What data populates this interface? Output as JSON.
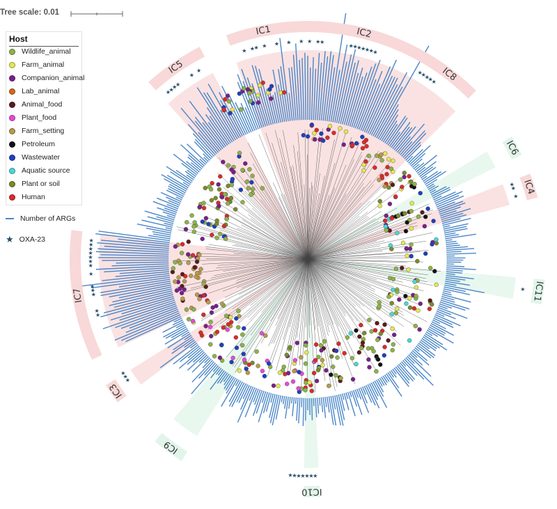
{
  "tree_scale": {
    "label": "Tree scale: 0.01"
  },
  "legend": {
    "title": "Host",
    "items": [
      {
        "label": "Wildlife_animal",
        "color": "#8db24a"
      },
      {
        "label": "Farm_animal",
        "color": "#e6e652"
      },
      {
        "label": "Companion_animal",
        "color": "#7a1f8c"
      },
      {
        "label": "Lab_animal",
        "color": "#d2691e"
      },
      {
        "label": "Animal_food",
        "color": "#5c1a1a"
      },
      {
        "label": "Plant_food",
        "color": "#e64adc"
      },
      {
        "label": "Farm_setting",
        "color": "#b89a4a"
      },
      {
        "label": "Petroleum",
        "color": "#111111"
      },
      {
        "label": "Wastewater",
        "color": "#1f3fbf"
      },
      {
        "label": "Aquatic source",
        "color": "#4ad6d6"
      },
      {
        "label": "Plant or soil",
        "color": "#7a8a2a"
      },
      {
        "label": "Human",
        "color": "#d92b2b"
      }
    ],
    "args_label": "Number of ARGs",
    "args_color": "#4a86c8",
    "oxa_label": "OXA-23",
    "oxa_color": "#264d6b"
  },
  "clades": [
    {
      "name": "IC1",
      "start": 340,
      "end": 358,
      "type": "international",
      "color": "#f8d8d8"
    },
    {
      "name": "IC2",
      "start": 358,
      "end": 30,
      "type": "international",
      "color": "#f8d8d8"
    },
    {
      "name": "IC8",
      "start": 30,
      "end": 45,
      "type": "international",
      "color": "#f8d8d8"
    },
    {
      "name": "IC6",
      "start": 59,
      "end": 64,
      "type": "minor",
      "color": "#e2f5ea"
    },
    {
      "name": "IC4",
      "start": 69,
      "end": 75,
      "type": "international",
      "color": "#f8d8d8"
    },
    {
      "name": "IC11",
      "start": 95,
      "end": 101,
      "type": "minor",
      "color": "#e2f5ea"
    },
    {
      "name": "IC10",
      "start": 177,
      "end": 181,
      "type": "minor",
      "color": "#e2f5ea"
    },
    {
      "name": "IC9",
      "start": 212,
      "end": 220,
      "type": "minor",
      "color": "#e2f5ea"
    },
    {
      "name": "IC3",
      "start": 233,
      "end": 238,
      "type": "international",
      "color": "#f8d8d8"
    },
    {
      "name": "IC7",
      "start": 245,
      "end": 277,
      "type": "international",
      "color": "#f8d8d8"
    },
    {
      "name": "IC5",
      "start": 318,
      "end": 333,
      "type": "international",
      "color": "#f8d8d8"
    }
  ]
}
